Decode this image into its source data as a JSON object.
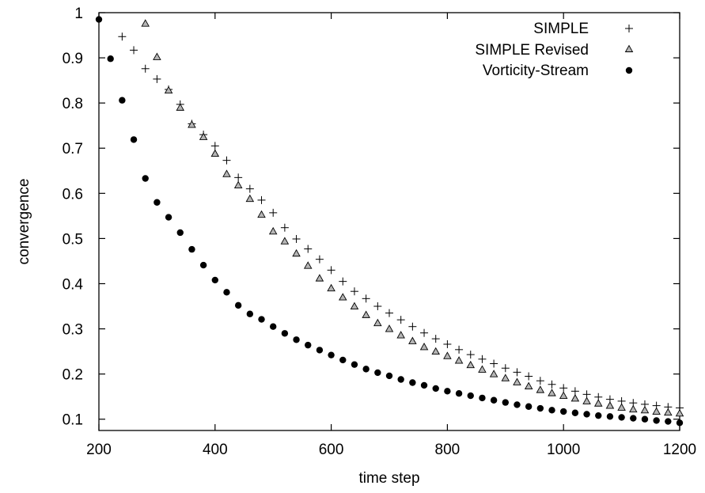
{
  "chart_data": {
    "type": "scatter",
    "title": "",
    "xlabel": "time step",
    "ylabel": "convergence",
    "xlim": [
      200,
      1200
    ],
    "ylim": [
      0.075,
      1.0
    ],
    "xticks": [
      200,
      400,
      600,
      800,
      1000,
      1200
    ],
    "yticks": [
      0.1,
      0.2,
      0.3,
      0.4,
      0.5,
      0.6,
      0.7,
      0.8,
      0.9,
      1
    ],
    "grid": false,
    "legend_position": "top-right",
    "series": [
      {
        "name": "SIMPLE",
        "marker": "plus",
        "color": "#000000",
        "x": [
          240,
          260,
          280,
          300,
          320,
          340,
          360,
          380,
          400,
          420,
          440,
          460,
          480,
          500,
          520,
          540,
          560,
          580,
          600,
          620,
          640,
          660,
          680,
          700,
          720,
          740,
          760,
          780,
          800,
          820,
          840,
          860,
          880,
          900,
          920,
          940,
          960,
          980,
          1000,
          1020,
          1040,
          1060,
          1080,
          1100,
          1120,
          1140,
          1160,
          1180,
          1200
        ],
        "y": [
          0.947,
          0.917,
          0.876,
          0.853,
          0.83,
          0.797,
          0.754,
          0.73,
          0.705,
          0.673,
          0.635,
          0.61,
          0.585,
          0.557,
          0.524,
          0.499,
          0.477,
          0.454,
          0.43,
          0.405,
          0.383,
          0.367,
          0.35,
          0.335,
          0.32,
          0.305,
          0.291,
          0.278,
          0.266,
          0.254,
          0.243,
          0.233,
          0.223,
          0.213,
          0.204,
          0.195,
          0.185,
          0.177,
          0.169,
          0.162,
          0.155,
          0.149,
          0.144,
          0.14,
          0.136,
          0.133,
          0.13,
          0.127,
          0.125
        ]
      },
      {
        "name": "SIMPLE Revised",
        "marker": "triangle",
        "color": "#000000",
        "x": [
          280,
          300,
          320,
          340,
          360,
          380,
          400,
          420,
          440,
          460,
          480,
          500,
          520,
          540,
          560,
          580,
          600,
          620,
          640,
          660,
          680,
          700,
          720,
          740,
          760,
          780,
          800,
          820,
          840,
          860,
          880,
          900,
          920,
          940,
          960,
          980,
          1000,
          1020,
          1040,
          1060,
          1080,
          1100,
          1120,
          1140,
          1160,
          1180,
          1200
        ],
        "y": [
          0.976,
          0.902,
          0.828,
          0.79,
          0.752,
          0.725,
          0.688,
          0.643,
          0.618,
          0.588,
          0.553,
          0.516,
          0.494,
          0.467,
          0.44,
          0.412,
          0.39,
          0.37,
          0.35,
          0.331,
          0.313,
          0.3,
          0.286,
          0.273,
          0.26,
          0.25,
          0.24,
          0.23,
          0.22,
          0.21,
          0.2,
          0.191,
          0.182,
          0.173,
          0.165,
          0.158,
          0.152,
          0.146,
          0.14,
          0.135,
          0.13,
          0.126,
          0.122,
          0.12,
          0.117,
          0.115,
          0.113
        ]
      },
      {
        "name": "Vorticity-Stream",
        "marker": "filled-circle",
        "color": "#000000",
        "x": [
          200,
          220,
          240,
          260,
          280,
          300,
          320,
          340,
          360,
          380,
          400,
          420,
          440,
          460,
          480,
          500,
          520,
          540,
          560,
          580,
          600,
          620,
          640,
          660,
          680,
          700,
          720,
          740,
          760,
          780,
          800,
          820,
          840,
          860,
          880,
          900,
          920,
          940,
          960,
          980,
          1000,
          1020,
          1040,
          1060,
          1080,
          1100,
          1120,
          1140,
          1160,
          1180,
          1200
        ],
        "y": [
          0.985,
          0.898,
          0.806,
          0.719,
          0.633,
          0.58,
          0.547,
          0.513,
          0.476,
          0.441,
          0.408,
          0.381,
          0.352,
          0.333,
          0.321,
          0.305,
          0.29,
          0.276,
          0.264,
          0.253,
          0.242,
          0.231,
          0.221,
          0.211,
          0.203,
          0.196,
          0.188,
          0.181,
          0.175,
          0.168,
          0.162,
          0.157,
          0.152,
          0.147,
          0.142,
          0.137,
          0.132,
          0.128,
          0.124,
          0.12,
          0.117,
          0.114,
          0.111,
          0.108,
          0.106,
          0.104,
          0.102,
          0.1,
          0.097,
          0.095,
          0.092
        ]
      }
    ]
  }
}
